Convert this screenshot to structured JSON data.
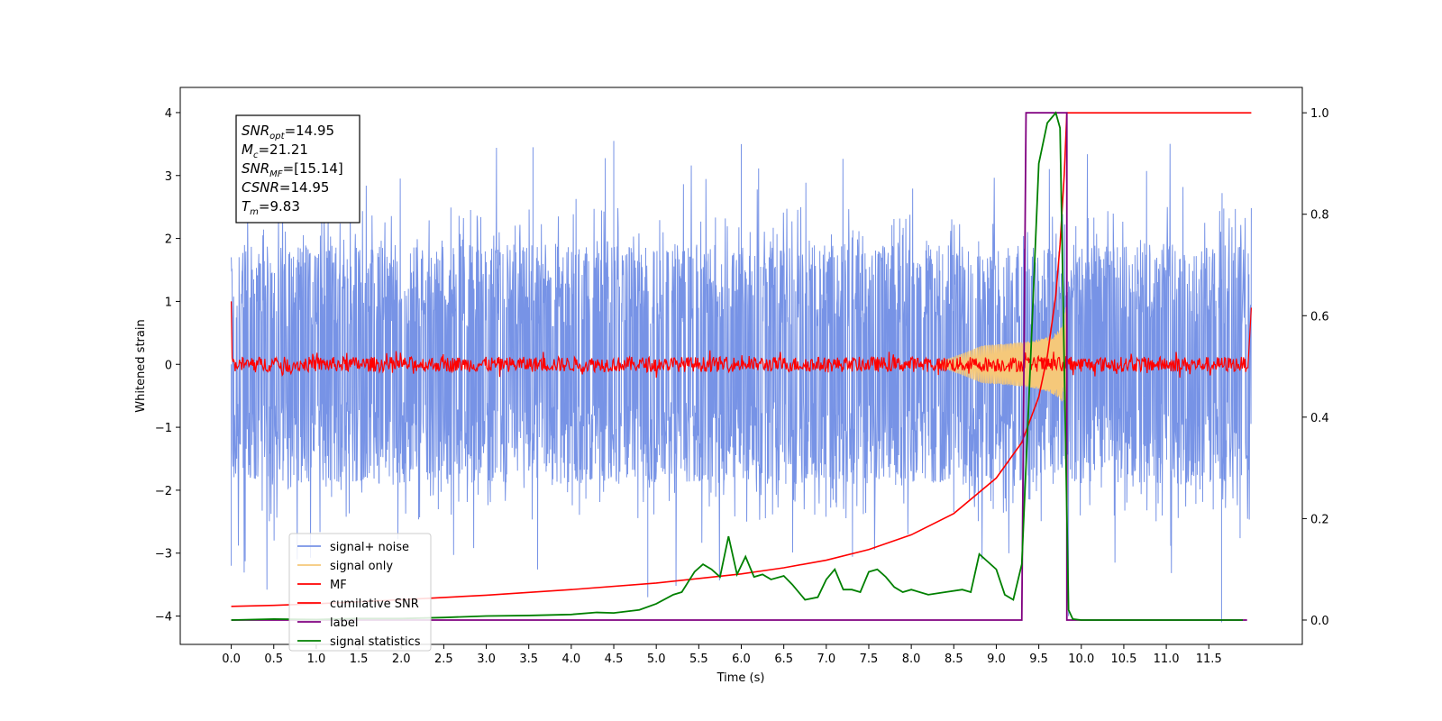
{
  "chart_data": {
    "type": "line",
    "xlabel": "Time (s)",
    "ylabel_left": "Whitened strain",
    "xlim": [
      -0.6,
      12.6
    ],
    "ylim_left": [
      -4.45,
      4.4
    ],
    "ylim_right": [
      -0.048,
      1.05
    ],
    "xticks": [
      0.0,
      0.5,
      1.0,
      1.5,
      2.0,
      2.5,
      3.0,
      3.5,
      4.0,
      4.5,
      5.0,
      5.5,
      6.0,
      6.5,
      7.0,
      7.5,
      8.0,
      8.5,
      9.0,
      9.5,
      10.0,
      10.5,
      11.0,
      11.5
    ],
    "xtick_labels": [
      "0.0",
      "0.5",
      "1.0",
      "1.5",
      "2.0",
      "2.5",
      "3.0",
      "3.5",
      "4.0",
      "4.5",
      "5.0",
      "5.5",
      "6.0",
      "6.5",
      "7.0",
      "7.5",
      "8.0",
      "8.5",
      "9.0",
      "9.5",
      "10.0",
      "10.5",
      "11.0",
      "11.5"
    ],
    "yticks_left": [
      -4,
      -3,
      -2,
      -1,
      0,
      1,
      2,
      3,
      4
    ],
    "ytick_labels_left": [
      "−4",
      "−3",
      "−2",
      "−1",
      "0",
      "1",
      "2",
      "3",
      "4"
    ],
    "yticks_right": [
      0.0,
      0.2,
      0.4,
      0.6,
      0.8,
      1.0
    ],
    "ytick_labels_right": [
      "0.0",
      "0.2",
      "0.4",
      "0.6",
      "0.8",
      "1.0"
    ],
    "annotation": {
      "lines": [
        {
          "base": "SNR",
          "sub": "opt",
          "value": "=14.95"
        },
        {
          "base": "M",
          "sub": "c",
          "value": "=21.21"
        },
        {
          "base": "SNR",
          "sub": "MF",
          "value": "=[15.14]"
        },
        {
          "base": "CSNR",
          "sub": "",
          "value": "=14.95"
        },
        {
          "base": "T",
          "sub": "m",
          "value": "=9.83"
        }
      ]
    },
    "legend_position": "lower-left",
    "series": [
      {
        "name": "signal+ noise",
        "color": "#7793e6",
        "axis": "left",
        "kind": "noise",
        "t_range": [
          0.0,
          12.0
        ],
        "band_low": [
          -2.0,
          2.2
        ],
        "spike_max": [
          3.6,
          -4.1
        ]
      },
      {
        "name": "signal only",
        "color": "#f5c87a",
        "axis": "left",
        "kind": "chirp",
        "t_range": [
          8.3,
          9.83
        ],
        "peak_amplitude": 1.2
      },
      {
        "name": "MF",
        "color": "#ff0000",
        "axis": "left",
        "kind": "mf",
        "t_range": [
          0.0,
          12.0
        ],
        "start_value": 1.0,
        "end_value": 0.9,
        "band": 0.12
      },
      {
        "name": "cumilative SNR",
        "color": "#ff0000",
        "axis": "right",
        "x": [
          0.0,
          0.5,
          1.0,
          2.0,
          3.0,
          4.0,
          5.0,
          6.0,
          6.5,
          7.0,
          7.5,
          8.0,
          8.5,
          9.0,
          9.3,
          9.5,
          9.6,
          9.7,
          9.75,
          9.8,
          9.83,
          12.0
        ],
        "y": [
          0.027,
          0.029,
          0.032,
          0.04,
          0.049,
          0.06,
          0.073,
          0.091,
          0.103,
          0.118,
          0.139,
          0.168,
          0.21,
          0.28,
          0.35,
          0.44,
          0.52,
          0.64,
          0.74,
          0.88,
          1.0,
          1.0
        ]
      },
      {
        "name": "label",
        "color": "#800080",
        "axis": "right",
        "x": [
          0.0,
          9.3,
          9.35,
          9.83,
          9.83,
          11.95
        ],
        "y": [
          0.0,
          0.0,
          1.0,
          1.0,
          0.0,
          0.0
        ]
      },
      {
        "name": "signal statistics",
        "color": "#008000",
        "axis": "right",
        "x": [
          0.0,
          0.5,
          1.0,
          1.5,
          2.0,
          2.5,
          3.0,
          3.5,
          4.0,
          4.3,
          4.5,
          4.8,
          5.0,
          5.2,
          5.3,
          5.45,
          5.55,
          5.65,
          5.75,
          5.85,
          5.95,
          6.05,
          6.15,
          6.25,
          6.35,
          6.5,
          6.6,
          6.75,
          6.9,
          7.0,
          7.1,
          7.2,
          7.3,
          7.4,
          7.5,
          7.6,
          7.7,
          7.8,
          7.9,
          8.0,
          8.2,
          8.4,
          8.6,
          8.7,
          8.8,
          8.9,
          9.0,
          9.1,
          9.2,
          9.3,
          9.4,
          9.5,
          9.6,
          9.7,
          9.75,
          9.8,
          9.85,
          9.9,
          10.0,
          11.9
        ],
        "y": [
          0.0,
          0.002,
          0.001,
          0.003,
          0.003,
          0.005,
          0.008,
          0.009,
          0.011,
          0.015,
          0.014,
          0.02,
          0.032,
          0.05,
          0.055,
          0.095,
          0.11,
          0.1,
          0.085,
          0.165,
          0.09,
          0.125,
          0.085,
          0.09,
          0.08,
          0.087,
          0.07,
          0.04,
          0.045,
          0.08,
          0.1,
          0.06,
          0.06,
          0.055,
          0.095,
          0.1,
          0.085,
          0.065,
          0.055,
          0.06,
          0.05,
          0.055,
          0.06,
          0.055,
          0.13,
          0.115,
          0.1,
          0.05,
          0.04,
          0.11,
          0.5,
          0.9,
          0.98,
          1.0,
          0.97,
          0.5,
          0.02,
          0.002,
          0.0,
          0.0
        ]
      }
    ]
  }
}
